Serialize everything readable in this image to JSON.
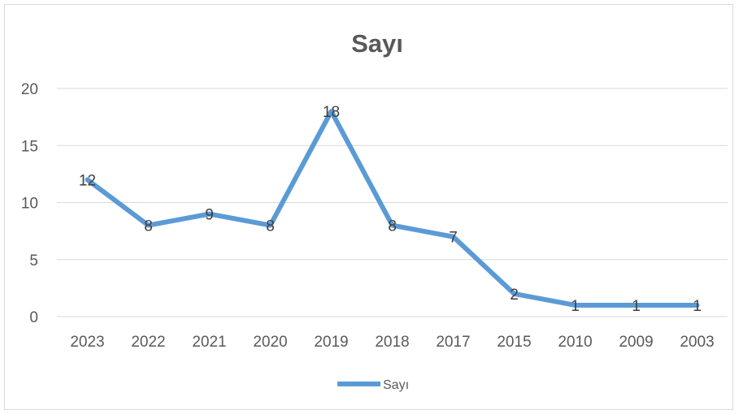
{
  "chart_data": {
    "type": "line",
    "title": "Sayı",
    "categories": [
      "2023",
      "2022",
      "2021",
      "2020",
      "2019",
      "2018",
      "2017",
      "2015",
      "2010",
      "2009",
      "2003"
    ],
    "series": [
      {
        "name": "Sayı",
        "values": [
          12,
          8,
          9,
          8,
          18,
          8,
          7,
          2,
          1,
          1,
          1
        ]
      }
    ],
    "ylim": [
      0,
      20
    ],
    "yticks": [
      "0",
      "5",
      "10",
      "15",
      "20"
    ],
    "grid": true,
    "legend": "bottom",
    "data_labels": true,
    "colors": {
      "line": "#5b9bd5",
      "grid": "#d9d9d9",
      "text": "#595959"
    }
  }
}
